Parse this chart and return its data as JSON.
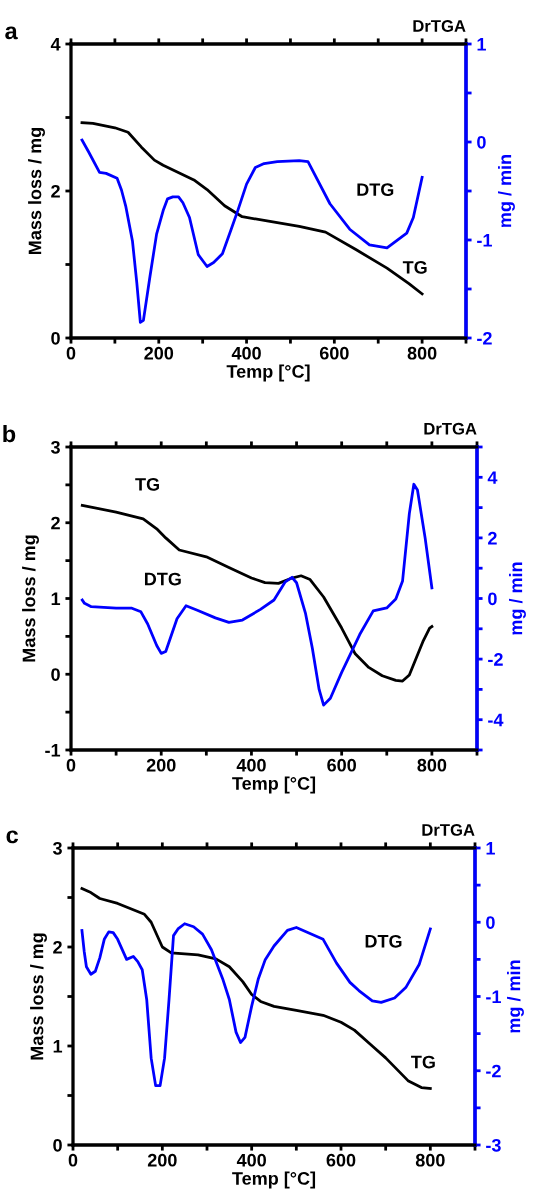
{
  "chart_data": [
    {
      "type": "line",
      "title": "DrTGA",
      "annotations": [
        "a"
      ],
      "xlabel": "Temp [°C]",
      "ylabel": "Mass loss / mg",
      "y2label": "mg / min",
      "xlim": [
        0,
        900
      ],
      "xticks": [
        0,
        {
          "value": 100,
          "label": null
        },
        200,
        {
          "value": 300,
          "label": null
        },
        400,
        {
          "value": 500,
          "label": null
        },
        600,
        {
          "value": 700,
          "label": null
        },
        800,
        {
          "value": 900,
          "label": null
        }
      ],
      "ylim": [
        0,
        4
      ],
      "yticks": [
        0,
        {
          "value": 1,
          "label": null
        },
        2,
        {
          "value": 3,
          "label": null
        },
        4
      ],
      "y2lim": [
        -2,
        1
      ],
      "y2ticks": [
        -2,
        {
          "value": -1.5,
          "label": null
        },
        -1,
        {
          "value": -0.5,
          "label": null
        },
        0,
        {
          "value": 0.5,
          "label": null
        },
        1
      ],
      "series": [
        {
          "name": "TG",
          "color": "#000000",
          "x": [
            25,
            50,
            100,
            130,
            160,
            190,
            210,
            280,
            310,
            350,
            390,
            450,
            520,
            580,
            650,
            720,
            770,
            800
          ],
          "values": [
            2.93,
            2.92,
            2.86,
            2.8,
            2.6,
            2.42,
            2.35,
            2.15,
            2.02,
            1.8,
            1.65,
            1.59,
            1.52,
            1.44,
            1.2,
            0.95,
            0.74,
            0.6
          ]
        },
        {
          "name": "DTG",
          "color": "#0000ff",
          "axis": "y2",
          "x": [
            25,
            40,
            65,
            80,
            105,
            115,
            125,
            140,
            150,
            158,
            165,
            180,
            195,
            210,
            220,
            232,
            245,
            255,
            270,
            290,
            310,
            325,
            345,
            365,
            380,
            400,
            420,
            440,
            470,
            520,
            540,
            590,
            635,
            680,
            720,
            765,
            780,
            800
          ],
          "values": [
            0.02,
            -0.1,
            -0.31,
            -0.32,
            -0.37,
            -0.49,
            -0.66,
            -1.01,
            -1.44,
            -1.84,
            -1.82,
            -1.37,
            -0.94,
            -0.7,
            -0.58,
            -0.56,
            -0.56,
            -0.62,
            -0.77,
            -1.15,
            -1.27,
            -1.23,
            -1.14,
            -0.89,
            -0.7,
            -0.43,
            -0.26,
            -0.22,
            -0.2,
            -0.19,
            -0.2,
            -0.63,
            -0.89,
            -1.05,
            -1.08,
            -0.93,
            -0.77,
            -0.36
          ]
        }
      ]
    },
    {
      "type": "line",
      "title": "DrTGA",
      "annotations": [
        "b"
      ],
      "xlabel": "Temp [°C]",
      "ylabel": "Mass loss / mg",
      "y2label": "mg / min",
      "xlim": [
        0,
        900
      ],
      "xticks": [
        0,
        {
          "value": 100,
          "label": null
        },
        200,
        {
          "value": 300,
          "label": null
        },
        400,
        {
          "value": 500,
          "label": null
        },
        600,
        {
          "value": 700,
          "label": null
        },
        800,
        {
          "value": 900,
          "label": null
        }
      ],
      "ylim": [
        -1,
        3
      ],
      "yticks": [
        -1,
        {
          "value": -0.5,
          "label": null
        },
        0,
        {
          "value": 0.5,
          "label": null
        },
        1,
        {
          "value": 1.5,
          "label": null
        },
        2,
        {
          "value": 2.5,
          "label": null
        },
        3
      ],
      "y2lim": [
        -5,
        5
      ],
      "y2ticks": [
        {
          "value": -5,
          "label": null
        },
        -4,
        {
          "value": -3,
          "label": null
        },
        -2,
        {
          "value": -1,
          "label": null
        },
        0,
        {
          "value": 1,
          "label": null
        },
        2,
        {
          "value": 3,
          "label": null
        },
        4,
        {
          "value": 5,
          "label": null
        }
      ],
      "series": [
        {
          "name": "TG",
          "color": "#000000",
          "x": [
            25,
            100,
            160,
            190,
            210,
            240,
            300,
            350,
            400,
            430,
            460,
            490,
            510,
            530,
            560,
            600,
            630,
            660,
            690,
            720,
            735,
            750,
            780,
            795,
            800
          ],
          "values": [
            2.23,
            2.14,
            2.05,
            1.92,
            1.8,
            1.64,
            1.55,
            1.41,
            1.27,
            1.21,
            1.2,
            1.27,
            1.3,
            1.25,
            1.02,
            0.61,
            0.27,
            0.09,
            -0.02,
            -0.08,
            -0.09,
            -0.01,
            0.43,
            0.61,
            0.63
          ]
        },
        {
          "name": "DTG",
          "color": "#0000ff",
          "axis": "y2",
          "x": [
            25,
            30,
            45,
            100,
            135,
            155,
            170,
            190,
            200,
            210,
            235,
            255,
            280,
            320,
            350,
            380,
            420,
            450,
            475,
            490,
            500,
            520,
            535,
            550,
            560,
            575,
            600,
            640,
            670,
            700,
            720,
            735,
            750,
            760,
            768,
            785,
            800
          ],
          "values": [
            -0.05,
            -0.16,
            -0.27,
            -0.32,
            -0.32,
            -0.44,
            -0.84,
            -1.55,
            -1.81,
            -1.75,
            -0.67,
            -0.24,
            -0.39,
            -0.64,
            -0.79,
            -0.71,
            -0.36,
            -0.05,
            0.55,
            0.7,
            0.52,
            -0.5,
            -1.64,
            -3.0,
            -3.52,
            -3.29,
            -2.44,
            -1.19,
            -0.41,
            -0.31,
            -0.02,
            0.58,
            2.8,
            3.77,
            3.58,
            2.0,
            0.35
          ]
        }
      ]
    },
    {
      "type": "line",
      "title": "DrTGA",
      "annotations": [
        "c"
      ],
      "xlabel": "Temp [°C]",
      "ylabel": "Mass loss / mg",
      "y2label": "mg / min",
      "xlim": [
        0,
        900
      ],
      "xticks": [
        0,
        {
          "value": 100,
          "label": null
        },
        200,
        {
          "value": 300,
          "label": null
        },
        400,
        {
          "value": 500,
          "label": null
        },
        600,
        {
          "value": 700,
          "label": null
        },
        800,
        {
          "value": 900,
          "label": null
        }
      ],
      "ylim": [
        0,
        3
      ],
      "yticks": [
        0,
        {
          "value": 0.5,
          "label": null
        },
        1,
        {
          "value": 1.5,
          "label": null
        },
        2,
        {
          "value": 2.5,
          "label": null
        },
        3
      ],
      "y2lim": [
        -3,
        1
      ],
      "y2ticks": [
        -3,
        {
          "value": -2.5,
          "label": null
        },
        -2,
        {
          "value": -1.5,
          "label": null
        },
        -1,
        {
          "value": -0.5,
          "label": null
        },
        0,
        {
          "value": 0.5,
          "label": null
        },
        1
      ],
      "series": [
        {
          "name": "TG",
          "color": "#000000",
          "x": [
            20,
            40,
            60,
            100,
            160,
            175,
            200,
            220,
            280,
            320,
            350,
            380,
            400,
            420,
            450,
            500,
            560,
            600,
            630,
            670,
            700,
            750,
            780,
            800
          ],
          "values": [
            2.59,
            2.55,
            2.49,
            2.44,
            2.33,
            2.25,
            2.0,
            1.94,
            1.92,
            1.88,
            1.8,
            1.65,
            1.52,
            1.45,
            1.4,
            1.36,
            1.31,
            1.24,
            1.16,
            1.0,
            0.88,
            0.65,
            0.58,
            0.57
          ]
        },
        {
          "name": "DTG",
          "color": "#0000ff",
          "axis": "y2",
          "x": [
            20,
            25,
            30,
            40,
            50,
            60,
            70,
            80,
            90,
            100,
            120,
            135,
            145,
            155,
            165,
            175,
            185,
            195,
            205,
            215,
            225,
            235,
            250,
            270,
            290,
            310,
            335,
            350,
            365,
            375,
            385,
            400,
            415,
            430,
            450,
            480,
            500,
            560,
            590,
            620,
            640,
            670,
            690,
            720,
            745,
            775,
            800
          ],
          "values": [
            -0.11,
            -0.39,
            -0.6,
            -0.7,
            -0.66,
            -0.48,
            -0.23,
            -0.13,
            -0.14,
            -0.23,
            -0.5,
            -0.46,
            -0.53,
            -0.64,
            -1.04,
            -1.83,
            -2.2,
            -2.2,
            -1.83,
            -1.04,
            -0.18,
            -0.09,
            -0.02,
            -0.06,
            -0.16,
            -0.37,
            -0.76,
            -1.04,
            -1.48,
            -1.62,
            -1.55,
            -1.13,
            -0.76,
            -0.51,
            -0.32,
            -0.11,
            -0.07,
            -0.23,
            -0.55,
            -0.81,
            -0.92,
            -1.06,
            -1.08,
            -1.02,
            -0.88,
            -0.57,
            -0.09
          ]
        }
      ]
    }
  ]
}
